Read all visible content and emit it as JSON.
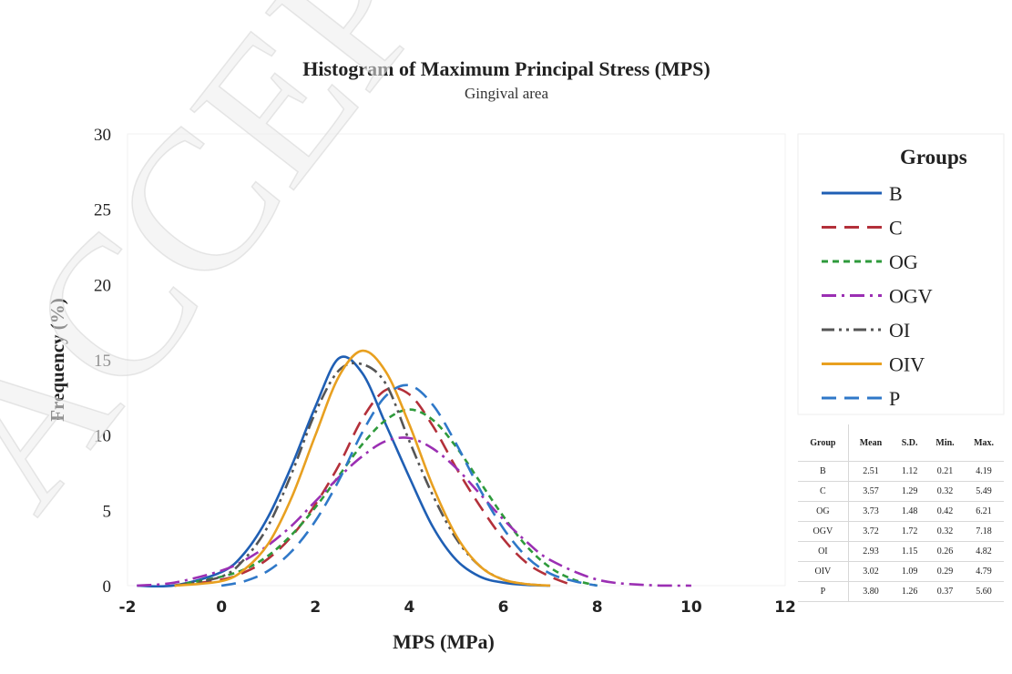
{
  "watermark": "ACCEPTED",
  "chart_data": {
    "type": "line",
    "title": "Histogram of Maximum Principal Stress (MPS)",
    "subtitle": "Gingival area",
    "xlabel": "MPS (MPa)",
    "ylabel": "Frequency (%)",
    "xlim": [
      -2,
      12
    ],
    "ylim": [
      0,
      30
    ],
    "xticks": [
      -2,
      0,
      2,
      4,
      6,
      8,
      10,
      12
    ],
    "yticks": [
      0,
      5,
      10,
      15,
      20,
      25,
      30
    ],
    "grid": false,
    "legend_title": "Groups",
    "legend_position": "right",
    "series": [
      {
        "name": "B",
        "color": "#1f5fb4",
        "dash": "solid",
        "mean": 2.51,
        "sd": 1.12,
        "x": [
          -1.8,
          -1.0,
          0.0,
          0.5,
          1.0,
          1.5,
          2.0,
          2.5,
          3.0,
          3.5,
          4.0,
          4.5,
          5.0,
          5.5,
          6.0,
          6.5,
          7.0
        ],
        "y": [
          0,
          0.02,
          0.9,
          2.2,
          4.6,
          8.0,
          11.9,
          15.1,
          14.1,
          10.7,
          7.2,
          3.9,
          1.7,
          0.6,
          0.2,
          0.05,
          0
        ]
      },
      {
        "name": "C",
        "color": "#b3303a",
        "dash": "long-dash",
        "mean": 3.57,
        "sd": 1.29,
        "x": [
          -1.0,
          0.0,
          0.5,
          1.0,
          1.5,
          2.0,
          2.5,
          3.0,
          3.5,
          4.0,
          4.5,
          5.0,
          5.5,
          6.0,
          6.5,
          7.0,
          7.5
        ],
        "y": [
          0,
          0.4,
          0.9,
          1.8,
          3.3,
          5.4,
          8.0,
          11.1,
          13.0,
          12.7,
          10.6,
          7.8,
          5.3,
          3.1,
          1.5,
          0.6,
          0
        ]
      },
      {
        "name": "OG",
        "color": "#2e9a3b",
        "dash": "short-dash",
        "mean": 3.73,
        "sd": 1.48,
        "x": [
          -1.0,
          0.0,
          0.5,
          1.0,
          1.5,
          2.0,
          2.5,
          3.0,
          3.5,
          4.0,
          4.5,
          5.0,
          5.5,
          6.0,
          6.5,
          7.0,
          7.5,
          8.0
        ],
        "y": [
          0,
          0.6,
          1.1,
          2.0,
          3.4,
          5.2,
          7.3,
          9.4,
          11.0,
          11.7,
          11.0,
          9.2,
          6.9,
          4.6,
          2.6,
          1.2,
          0.4,
          0
        ]
      },
      {
        "name": "OGV",
        "color": "#9b2fb3",
        "dash": "dash-dot",
        "mean": 3.72,
        "sd": 1.72,
        "x": [
          -1.8,
          -1.0,
          0.0,
          0.5,
          1.0,
          1.5,
          2.0,
          2.5,
          3.0,
          3.5,
          4.0,
          4.5,
          5.0,
          5.5,
          6.0,
          6.5,
          7.0,
          8.0,
          9.0,
          10.0
        ],
        "y": [
          0,
          0.2,
          1.0,
          1.7,
          2.7,
          4.0,
          5.6,
          7.2,
          8.6,
          9.6,
          9.8,
          9.1,
          7.8,
          6.1,
          4.4,
          2.9,
          1.7,
          0.4,
          0.05,
          0
        ]
      },
      {
        "name": "OI",
        "color": "#555555",
        "dash": "dash-dot-dot",
        "mean": 2.93,
        "sd": 1.15,
        "x": [
          -1.0,
          0.0,
          0.5,
          1.0,
          1.5,
          2.0,
          2.5,
          3.0,
          3.5,
          4.0,
          4.5,
          5.0,
          5.5,
          6.0,
          6.5,
          7.0
        ],
        "y": [
          0,
          0.6,
          1.8,
          4.0,
          7.5,
          11.5,
          14.3,
          14.7,
          13.4,
          9.6,
          6.0,
          3.1,
          1.3,
          0.4,
          0.1,
          0
        ]
      },
      {
        "name": "OIV",
        "color": "#e8a020",
        "dash": "solid",
        "mean": 3.02,
        "sd": 1.09,
        "x": [
          -1.0,
          0.0,
          0.5,
          1.0,
          1.5,
          2.0,
          2.5,
          3.0,
          3.5,
          4.0,
          4.5,
          5.0,
          5.5,
          6.0,
          6.5,
          7.0
        ],
        "y": [
          0,
          0.3,
          1.1,
          2.8,
          5.9,
          10.0,
          13.9,
          15.6,
          14.2,
          10.7,
          6.6,
          3.3,
          1.3,
          0.4,
          0.1,
          0
        ]
      },
      {
        "name": "P",
        "color": "#2f78c8",
        "dash": "long-dash",
        "mean": 3.8,
        "sd": 1.26,
        "x": [
          0.0,
          0.5,
          1.0,
          1.5,
          2.0,
          2.5,
          3.0,
          3.5,
          4.0,
          4.5,
          5.0,
          5.5,
          6.0,
          6.5,
          7.0,
          7.5,
          8.0
        ],
        "y": [
          0,
          0.3,
          1.0,
          2.3,
          4.3,
          7.0,
          10.2,
          12.6,
          13.3,
          12.0,
          9.4,
          6.4,
          3.8,
          1.9,
          0.8,
          0.3,
          0
        ]
      }
    ]
  },
  "stats_table": {
    "headers": [
      "Group",
      "Mean",
      "S.D.",
      "Min.",
      "Max."
    ],
    "rows": [
      [
        "B",
        "2.51",
        "1.12",
        "0.21",
        "4.19"
      ],
      [
        "C",
        "3.57",
        "1.29",
        "0.32",
        "5.49"
      ],
      [
        "OG",
        "3.73",
        "1.48",
        "0.42",
        "6.21"
      ],
      [
        "OGV",
        "3.72",
        "1.72",
        "0.32",
        "7.18"
      ],
      [
        "OI",
        "2.93",
        "1.15",
        "0.26",
        "4.82"
      ],
      [
        "OIV",
        "3.02",
        "1.09",
        "0.29",
        "4.79"
      ],
      [
        "P",
        "3.80",
        "1.26",
        "0.37",
        "5.60"
      ]
    ]
  }
}
